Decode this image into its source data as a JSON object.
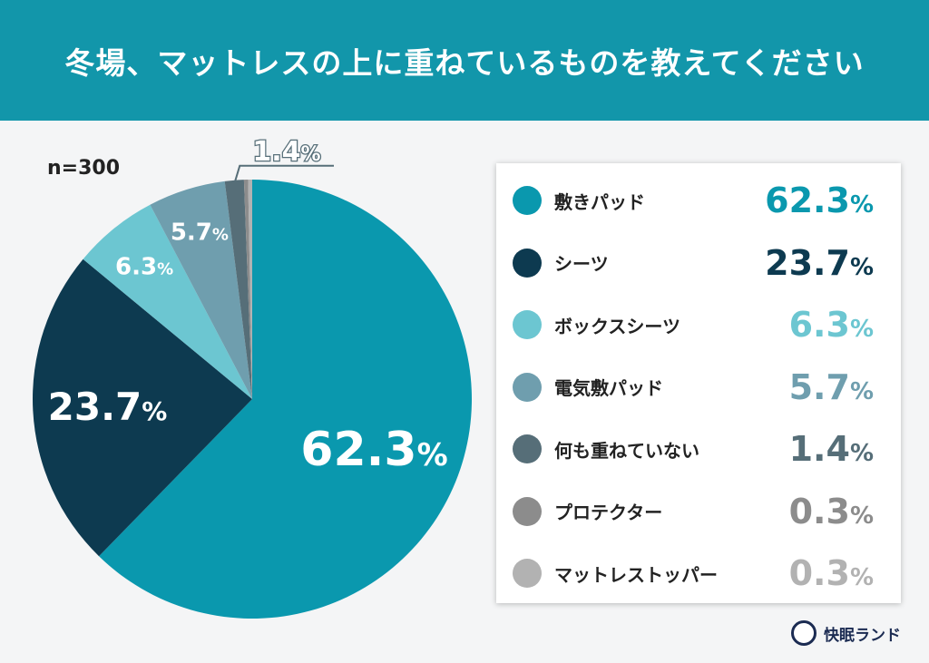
{
  "header": {
    "title": "冬場、マットレスの上に重ねているものを教えてください"
  },
  "sample_size": "n=300",
  "brand": "快眠ランド",
  "chart_data": {
    "type": "pie",
    "title": "冬場、マットレスの上に重ねているものを教えてください",
    "start": "top-clockwise",
    "legend_position": "right",
    "slices": [
      {
        "label": "敷きパッド",
        "value": 62.3,
        "display": "62.3",
        "color": "#0a98ae"
      },
      {
        "label": "シーツ",
        "value": 23.7,
        "display": "23.7",
        "color": "#0d3a50"
      },
      {
        "label": "ボックスシーツ",
        "value": 6.3,
        "display": "6.3",
        "color": "#6cc6d1"
      },
      {
        "label": "電気敷パッド",
        "value": 5.7,
        "display": "5.7",
        "color": "#6f9eae"
      },
      {
        "label": "何も重ねていない",
        "value": 1.4,
        "display": "1.4",
        "color": "#566e78"
      },
      {
        "label": "プロテクター",
        "value": 0.3,
        "display": "0.3",
        "color": "#8c8c8c"
      },
      {
        "label": "マットレストッパー",
        "value": 0.3,
        "display": "0.3",
        "color": "#b2b2b2"
      }
    ],
    "unit": "%"
  }
}
